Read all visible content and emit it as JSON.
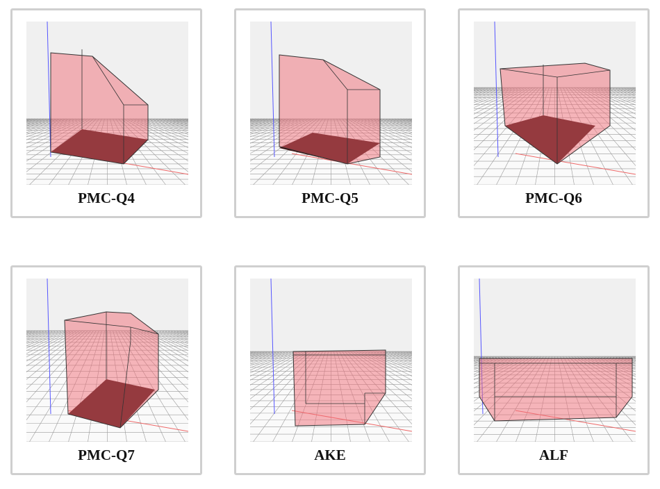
{
  "cards": [
    {
      "label": "PMC-Q4"
    },
    {
      "label": "PMC-Q5"
    },
    {
      "label": "PMC-Q6"
    },
    {
      "label": "PMC-Q7"
    },
    {
      "label": "AKE"
    },
    {
      "label": "ALF"
    }
  ]
}
